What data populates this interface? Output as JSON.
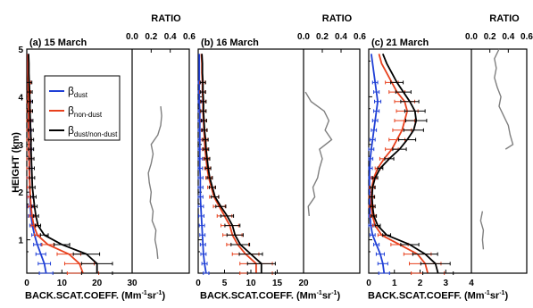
{
  "y_axis": {
    "label": "HEIGHT (km)",
    "ticks": [
      "1",
      "2",
      "3",
      "4",
      "5"
    ]
  },
  "x_axis_label": {
    "main": "BACK.SCAT.COEFF. (Mm",
    "sup1": "-1",
    "mid": "sr",
    "sup2": "-1",
    "end": ")"
  },
  "ratio_label": "RATIO",
  "legend": {
    "dust": {
      "base": "β",
      "sub": "dust"
    },
    "non_dust": {
      "base": "β",
      "sub": "non-dust"
    },
    "ratio": {
      "base": "β",
      "sub": "dust/non-dust"
    }
  },
  "colors": {
    "dust": "#1f3fd6",
    "non_dust": "#e8401c",
    "total": "#000000",
    "ratio": "#7f7f7f"
  },
  "chart_data": [
    {
      "type": "line",
      "title": "(a) 15 March",
      "x_ticks": [
        "0",
        "10",
        "20",
        "30"
      ],
      "xlim": [
        0,
        30
      ],
      "ratio_ticks": [
        "0.0",
        "0.2",
        "0.4",
        "0.6"
      ],
      "ratio_lim": [
        0,
        0.6
      ],
      "ylim": [
        0.3,
        5
      ],
      "height": [
        0.3,
        0.5,
        0.7,
        0.9,
        1.1,
        1.3,
        1.5,
        1.7,
        1.9,
        2.1,
        2.3,
        2.5,
        2.7,
        2.9,
        3.1,
        3.3,
        3.5,
        3.7,
        3.9,
        4.1,
        4.3,
        4.5,
        4.7,
        4.9
      ],
      "dust": [
        5.5,
        5.0,
        4.0,
        3.0,
        2.2,
        1.6,
        1.2,
        1.0,
        0.9,
        0.9,
        0.8,
        0.8,
        0.7,
        0.7,
        0.6,
        0.6,
        0.6,
        0.5,
        0.5,
        0.4,
        0.4,
        0.3,
        0.3,
        0.3
      ],
      "non_dust": [
        16.0,
        15.0,
        12.0,
        6.0,
        3.0,
        2.0,
        1.5,
        1.2,
        1.0,
        0.9,
        0.8,
        0.7,
        0.7,
        0.6,
        0.6,
        0.5,
        0.5,
        0.5,
        0.4,
        0.4,
        0.4,
        0.3,
        0.3,
        0.3
      ],
      "total": [
        20.0,
        20.0,
        17.0,
        10.0,
        5.0,
        3.2,
        2.6,
        2.2,
        1.9,
        1.6,
        1.5,
        1.4,
        1.3,
        1.2,
        1.2,
        1.1,
        1.0,
        0.9,
        0.9,
        0.8,
        0.7,
        0.6,
        0.6,
        0.5
      ],
      "ratio_height": [
        0.6,
        0.8,
        1.0,
        1.2,
        1.4,
        1.6,
        1.8,
        2.0,
        2.2,
        2.4,
        2.6,
        2.8,
        3.0,
        3.2,
        3.4,
        3.6,
        3.8
      ],
      "ratio": [
        0.27,
        0.26,
        0.24,
        0.25,
        0.21,
        0.22,
        0.19,
        0.2,
        0.18,
        0.17,
        0.2,
        0.22,
        0.2,
        0.27,
        0.3,
        0.31,
        0.3
      ]
    },
    {
      "type": "line",
      "title": "(b) 16 March",
      "x_ticks": [
        "0",
        "5",
        "10",
        "15",
        "20"
      ],
      "xlim": [
        0,
        20
      ],
      "ratio_ticks": [
        "0.0",
        "0.2",
        "0.4",
        "0.6"
      ],
      "ratio_lim": [
        0,
        0.6
      ],
      "ylim": [
        0.3,
        5
      ],
      "height": [
        0.3,
        0.5,
        0.7,
        0.9,
        1.1,
        1.3,
        1.5,
        1.7,
        1.9,
        2.1,
        2.3,
        2.5,
        2.7,
        2.9,
        3.1,
        3.3,
        3.5,
        3.7,
        3.9,
        4.1,
        4.3,
        4.5,
        4.7,
        4.9
      ],
      "dust": [
        1.5,
        1.2,
        1.0,
        0.9,
        0.8,
        0.7,
        0.6,
        0.5,
        0.4,
        0.4,
        0.4,
        0.3,
        0.3,
        0.3,
        0.3,
        0.3,
        0.3,
        0.3,
        0.2,
        0.2,
        0.2,
        0.2,
        0.2,
        0.2
      ],
      "non_dust": [
        11.0,
        11.0,
        9.0,
        7.5,
        6.5,
        6.0,
        5.0,
        4.0,
        3.0,
        2.5,
        2.0,
        1.7,
        1.5,
        1.3,
        1.2,
        1.1,
        1.0,
        0.9,
        0.9,
        0.8,
        0.8,
        0.7,
        0.7,
        0.6
      ],
      "total": [
        12.0,
        12.0,
        10.0,
        8.0,
        7.0,
        6.5,
        5.5,
        4.3,
        3.2,
        2.7,
        2.2,
        1.9,
        1.7,
        1.5,
        1.4,
        1.2,
        1.1,
        1.0,
        1.0,
        0.9,
        0.9,
        0.8,
        0.8,
        0.7
      ],
      "ratio_height": [
        1.5,
        1.7,
        1.9,
        2.1,
        2.3,
        2.5,
        2.7,
        2.9,
        3.1,
        3.3,
        3.5,
        3.7,
        3.9,
        4.1
      ],
      "ratio": [
        0.06,
        0.05,
        0.12,
        0.1,
        0.15,
        0.17,
        0.2,
        0.17,
        0.3,
        0.23,
        0.27,
        0.22,
        0.08,
        0.02
      ]
    },
    {
      "type": "line",
      "title": "(c) 21 March",
      "x_ticks": [
        "0",
        "1",
        "2",
        "3",
        "4"
      ],
      "xlim": [
        0,
        4
      ],
      "ratio_ticks": [
        "0.0",
        "0.2",
        "0.4",
        "0.6"
      ],
      "ratio_lim": [
        0,
        0.6
      ],
      "ylim": [
        0.3,
        5
      ],
      "height": [
        0.3,
        0.5,
        0.7,
        0.9,
        1.1,
        1.3,
        1.5,
        1.7,
        1.9,
        2.1,
        2.3,
        2.5,
        2.7,
        2.9,
        3.1,
        3.3,
        3.5,
        3.7,
        3.9,
        4.1,
        4.3,
        4.5,
        4.7,
        4.9
      ],
      "dust": [
        0.6,
        0.55,
        0.45,
        0.3,
        0.15,
        0.08,
        0.05,
        0.04,
        0.03,
        0.03,
        0.03,
        0.04,
        0.06,
        0.1,
        0.15,
        0.2,
        0.25,
        0.3,
        0.35,
        0.3,
        0.25,
        0.2,
        0.15,
        0.1
      ],
      "non_dust": [
        2.3,
        2.2,
        1.9,
        1.2,
        0.5,
        0.25,
        0.15,
        0.1,
        0.1,
        0.12,
        0.2,
        0.35,
        0.6,
        0.9,
        1.1,
        1.3,
        1.4,
        1.5,
        1.4,
        1.1,
        0.9,
        0.7,
        0.5,
        0.4
      ],
      "total": [
        2.7,
        2.6,
        2.2,
        1.6,
        0.7,
        0.35,
        0.2,
        0.15,
        0.13,
        0.15,
        0.25,
        0.45,
        0.8,
        1.2,
        1.5,
        1.75,
        1.85,
        1.8,
        1.6,
        1.35,
        1.1,
        0.9,
        0.7,
        0.55
      ],
      "ratio_height": [
        0.8,
        1.0,
        1.2,
        1.4,
        1.6,
        2.9,
        3.0,
        3.2,
        3.4,
        3.6,
        3.8,
        4.0,
        4.2,
        4.4,
        4.6,
        4.8,
        5.0
      ],
      "ratio": [
        0.13,
        0.12,
        0.13,
        0.1,
        0.12,
        0.37,
        0.45,
        0.42,
        0.4,
        0.35,
        0.3,
        0.32,
        0.28,
        0.25,
        0.27,
        0.25,
        0.3
      ]
    }
  ]
}
